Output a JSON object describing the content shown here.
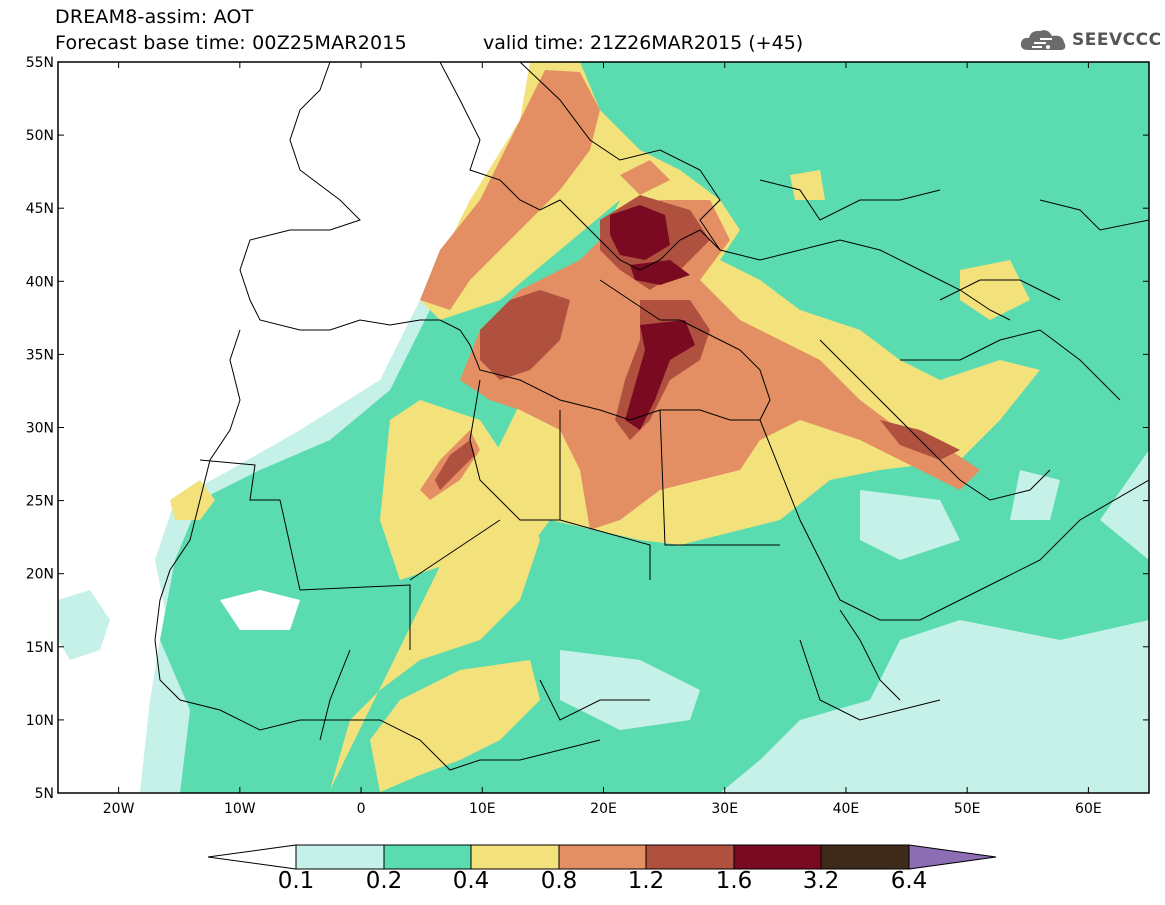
{
  "header": {
    "line1": "DREAM8-assim: AOT",
    "line2": "Forecast base time: 00Z25MAR2015",
    "valid": "valid time: 21Z26MAR2015 (+45)"
  },
  "logo": {
    "text": "SEEVCCC",
    "icon": "cloud-icon"
  },
  "map": {
    "variable": "AOT",
    "lat_labels": [
      "55N",
      "50N",
      "45N",
      "40N",
      "35N",
      "30N",
      "25N",
      "20N",
      "15N",
      "10N",
      "5N"
    ],
    "lon_labels": [
      "20W",
      "10W",
      "0",
      "10E",
      "20E",
      "30E",
      "40E",
      "50E",
      "60E"
    ],
    "lat_range": [
      5,
      55
    ],
    "lon_range": [
      -25,
      65
    ]
  },
  "legend": {
    "labels": [
      "0.1",
      "0.2",
      "0.4",
      "0.8",
      "1.2",
      "1.6",
      "3.2",
      "6.4"
    ],
    "colors": [
      "#ffffff",
      "#c6f1e8",
      "#5adcb0",
      "#f3e27c",
      "#e38f63",
      "#b0503f",
      "#7a0a22",
      "#3d2a1a",
      "#8d6eb4"
    ]
  }
}
